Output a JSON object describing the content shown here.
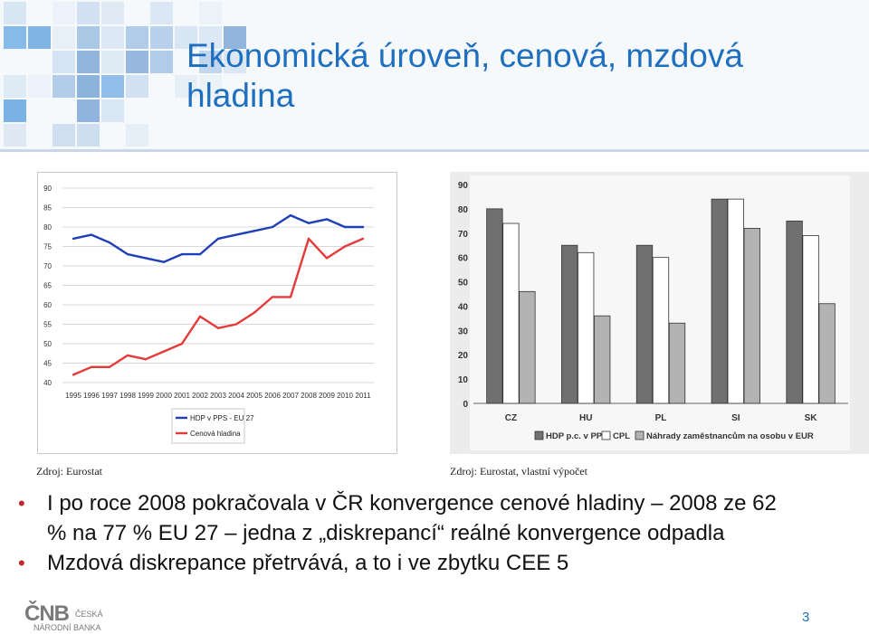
{
  "slide": {
    "title_line1": "Ekonomická úroveň, cenová, mzdová",
    "title_line2": "hladina",
    "page_number": "3",
    "accent_color": "#1f6fbf",
    "bullet_color": "#c0282b"
  },
  "sources": {
    "left": "Zdroj: Eurostat",
    "right": "Zdroj: Eurostat, vlastní výpočet"
  },
  "bullets": [
    {
      "line1": "I po roce 2008 pokračovala v ČR konvergence cenové hladiny – 2008 ze 62",
      "line2": "% na 77 % EU 27 – jedna z „diskrepancí“ reálné konvergence odpadla"
    },
    {
      "line1": "Mzdová diskrepance přetrvává, a to i ve zbytku CEE 5",
      "line2": ""
    }
  ],
  "logo": {
    "mark": "ČNB",
    "line1": "ČESKÁ",
    "line2": "NÁRODNÍ BANKA"
  },
  "chart_data": [
    {
      "type": "line",
      "x": [
        "1995",
        "1996",
        "1997",
        "1998",
        "1999",
        "2000",
        "2001",
        "2002",
        "2003",
        "2004",
        "2005",
        "2006",
        "2007",
        "2008",
        "2009",
        "2010",
        "2011"
      ],
      "ylim": [
        40,
        90
      ],
      "yticks": [
        40,
        45,
        50,
        55,
        60,
        65,
        70,
        75,
        80,
        85,
        90
      ],
      "grid": true,
      "legend_position": "bottom-left",
      "series": [
        {
          "name": "HDP v PPS - EU 27",
          "color": "#1f3fb8",
          "values": [
            77,
            78,
            76,
            73,
            72,
            71,
            73,
            73,
            77,
            78,
            79,
            80,
            83,
            81,
            82,
            80,
            80
          ]
        },
        {
          "name": "Cenová hladina",
          "color": "#e53a3a",
          "values": [
            42,
            44,
            44,
            47,
            46,
            48,
            50,
            57,
            54,
            55,
            58,
            62,
            62,
            77,
            72,
            75,
            77
          ]
        }
      ]
    },
    {
      "type": "bar",
      "categories": [
        "CZ",
        "HU",
        "PL",
        "SI",
        "SK"
      ],
      "ylim": [
        0,
        90
      ],
      "yticks": [
        0,
        10,
        20,
        30,
        40,
        50,
        60,
        70,
        80,
        90
      ],
      "legend_position": "bottom",
      "series": [
        {
          "name": "HDP p.c. v PPS",
          "color": "#707070",
          "values": [
            80,
            65,
            65,
            84,
            75
          ]
        },
        {
          "name": "CPL",
          "color": "#ffffff",
          "values": [
            74,
            62,
            60,
            84,
            69
          ]
        },
        {
          "name": "Náhrady zaměstnancům na osobu v EUR",
          "color": "#b3b3b3",
          "values": [
            46,
            36,
            33,
            72,
            41
          ]
        }
      ]
    }
  ]
}
